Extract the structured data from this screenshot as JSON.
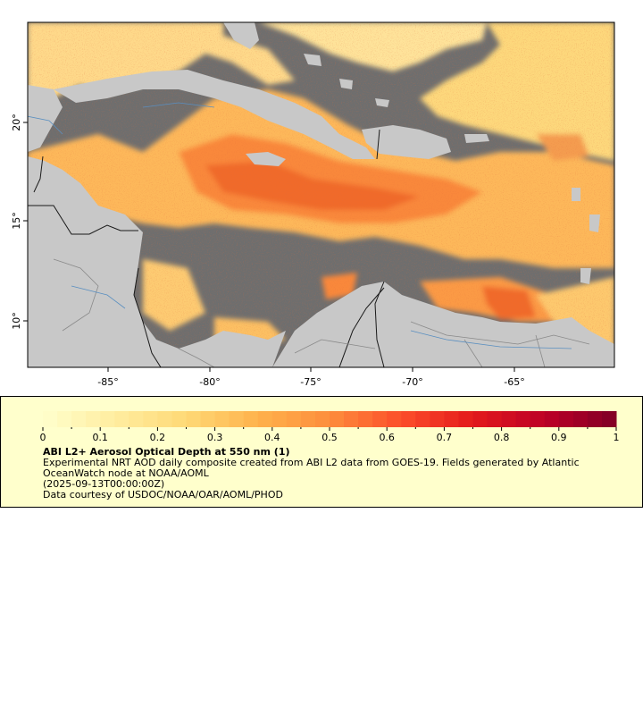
{
  "map": {
    "lon_ticks": [
      "-85°",
      "-80°",
      "-75°",
      "-70°",
      "-65°"
    ],
    "lat_ticks": [
      "20°",
      "15°",
      "10°"
    ],
    "colors": {
      "land": "#c8c8c8",
      "no_data": "#6e6e6e",
      "border": "#1a1a1a",
      "state_border": "#8a8a8a",
      "river": "#5a8fc0"
    }
  },
  "legend": {
    "colorbar_ticks": [
      "0",
      "0.1",
      "0.2",
      "0.3",
      "0.4",
      "0.5",
      "0.6",
      "0.7",
      "0.8",
      "0.9",
      "1"
    ],
    "colorbar_range": [
      0,
      1
    ],
    "colormap": [
      "#ffffcc",
      "#ffeda0",
      "#fed976",
      "#feb24c",
      "#fd8d3c",
      "#fc4e2a",
      "#e31a1c",
      "#bd0026",
      "#800026"
    ],
    "title": "ABI L2+ Aerosol Optical Depth at 550 nm (1)",
    "description": "Experimental NRT AOD daily composite created from ABI L2 data from GOES-19. Fields generated by Atlantic OceanWatch node at NOAA/AOML",
    "time": "(2025-09-13T00:00:00Z)",
    "credit": "Data courtesy of USDOC/NOAA/OAR/AOML/PHOD"
  }
}
